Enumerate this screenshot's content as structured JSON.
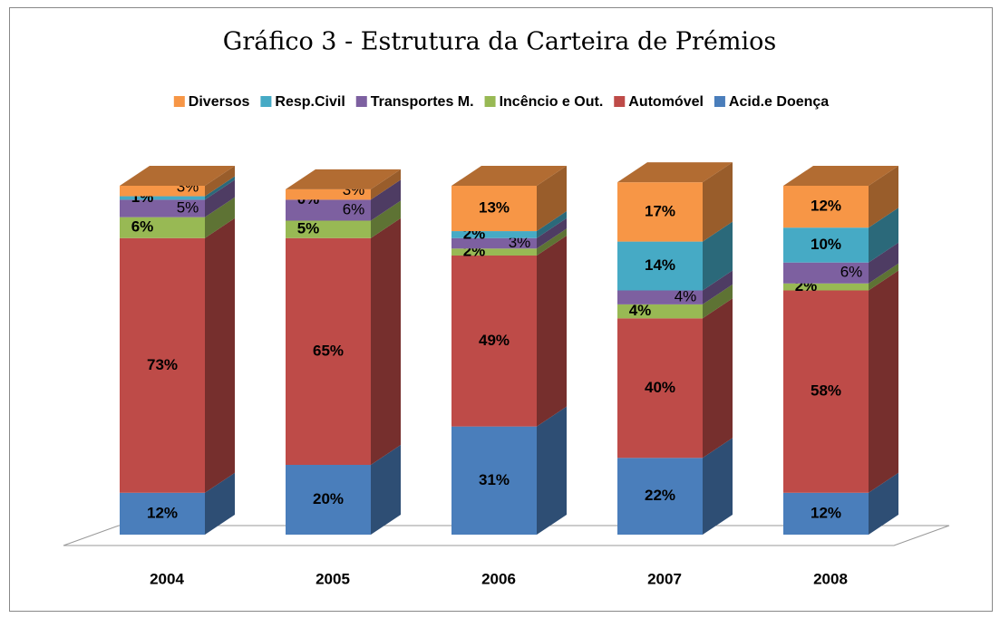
{
  "chart_data": {
    "type": "bar",
    "stacked": true,
    "title": "Gráfico 3 - Estrutura da Carteira de Prémios",
    "categories": [
      "2004",
      "2005",
      "2006",
      "2007",
      "2008"
    ],
    "series": [
      {
        "name": "Acid.e Doença",
        "color": "#4a7ebb",
        "values": [
          12,
          20,
          31,
          22,
          12
        ],
        "value_labels": [
          "12%",
          "20%",
          "31%",
          "22%",
          "12%"
        ]
      },
      {
        "name": "Automóvel",
        "color": "#be4b48",
        "values": [
          73,
          65,
          49,
          40,
          58
        ],
        "value_labels": [
          "73%",
          "65%",
          "49%",
          "40%",
          "58%"
        ]
      },
      {
        "name": "Incêncio e Out.",
        "color": "#98b954",
        "values": [
          6,
          5,
          2,
          4,
          2
        ],
        "value_labels": [
          "6%",
          "5%",
          "2%",
          "4%",
          "2%"
        ]
      },
      {
        "name": "Transportes M.",
        "color": "#7d60a0",
        "values": [
          5,
          6,
          3,
          4,
          6
        ],
        "value_labels": [
          "5%",
          "6%",
          "3%",
          "4%",
          "6%"
        ]
      },
      {
        "name": "Resp.Civil",
        "color": "#46aac5",
        "values": [
          1,
          0,
          2,
          14,
          10
        ],
        "value_labels": [
          "1%",
          "0%",
          "2%",
          "14%",
          "10%"
        ]
      },
      {
        "name": "Diversos",
        "color": "#f79646",
        "values": [
          3,
          3,
          13,
          17,
          12
        ],
        "value_labels": [
          "3%",
          "3%",
          "13%",
          "17%",
          "12%"
        ]
      }
    ],
    "legend": "top"
  }
}
